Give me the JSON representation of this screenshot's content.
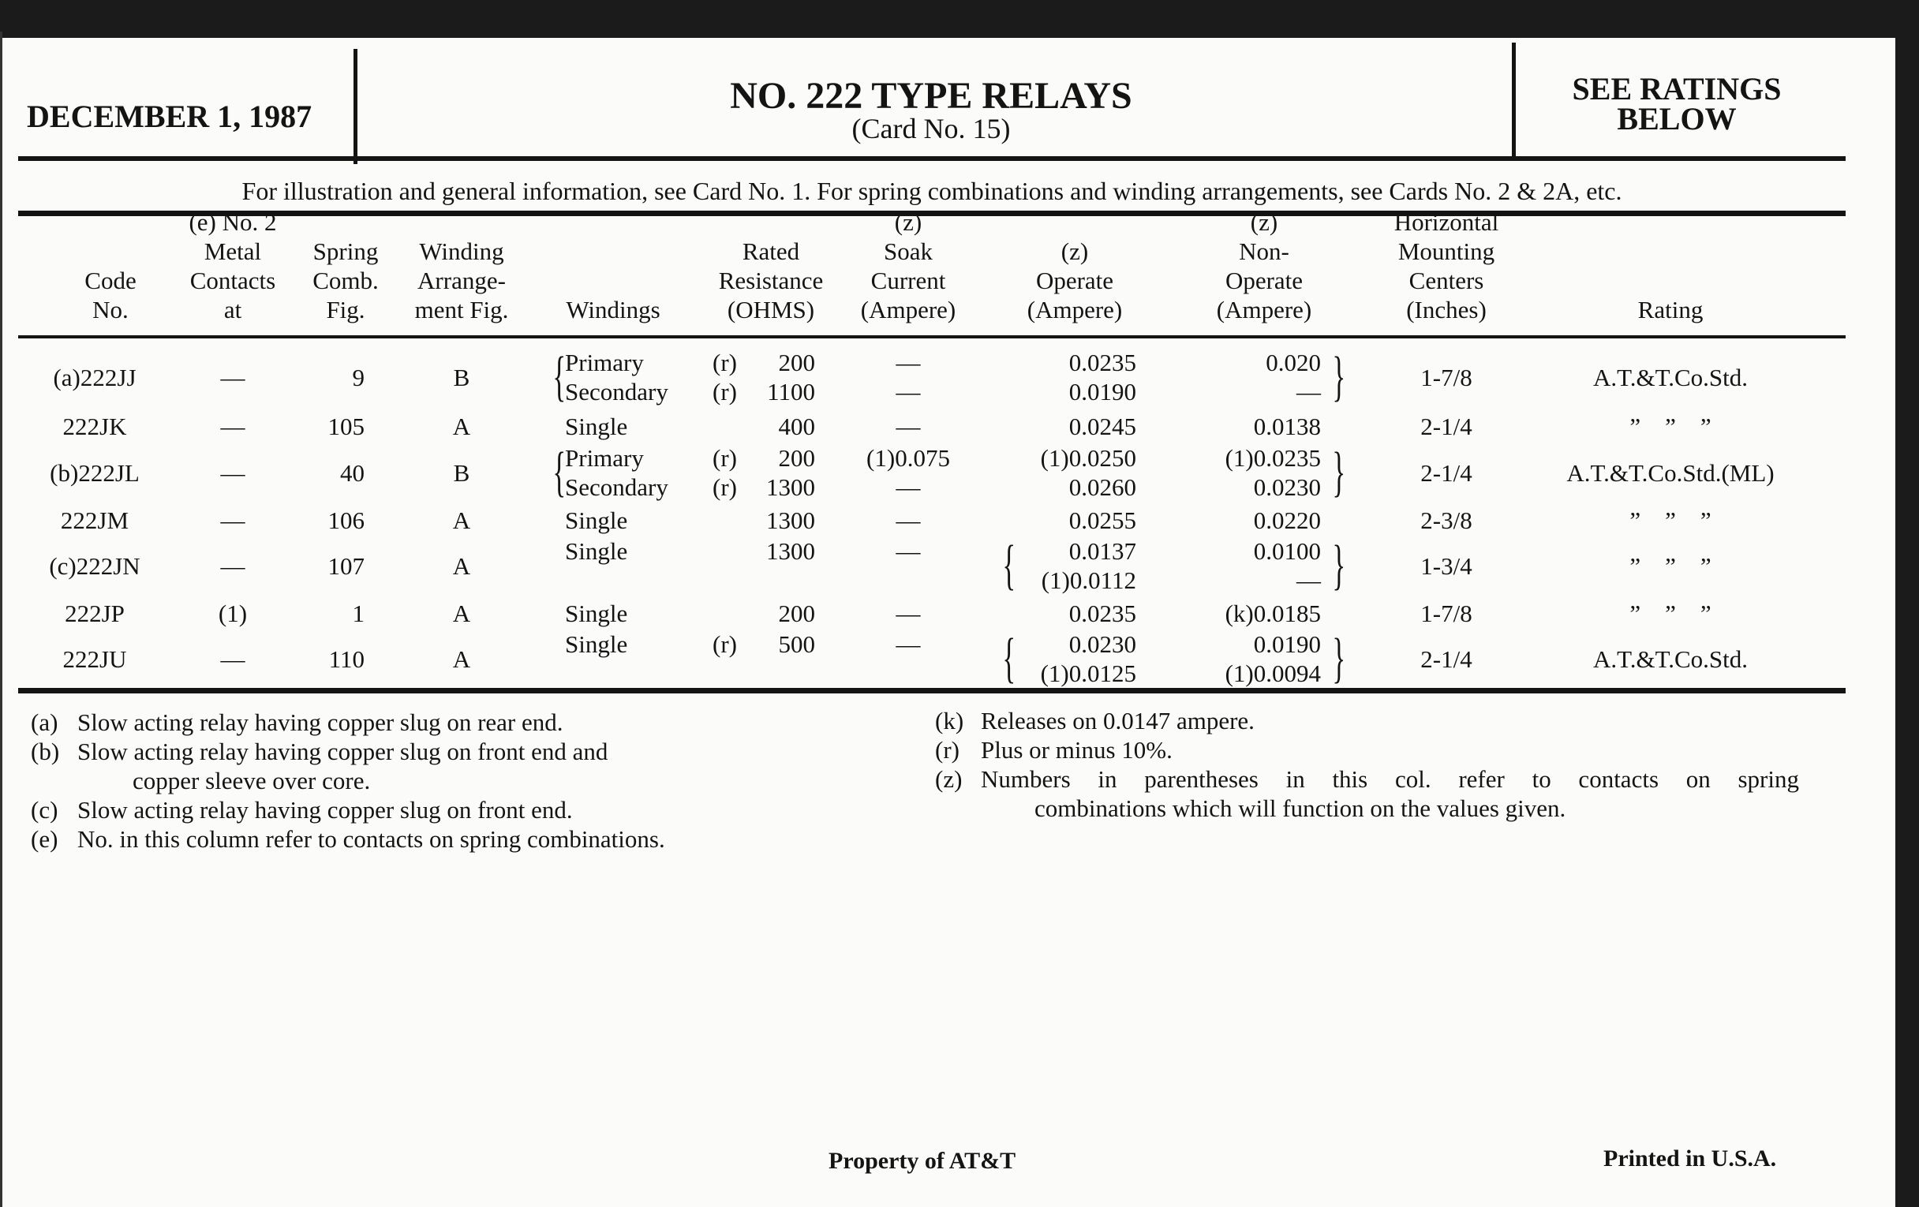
{
  "header": {
    "date": "DECEMBER 1, 1987",
    "title": "NO. 222 TYPE RELAYS",
    "subtitle": "(Card No. 15)",
    "ratings_note": "SEE RATINGS BELOW"
  },
  "info_line": "For illustration and general information, see Card No. 1. For spring combinations and winding arrangements, see Cards No. 2 & 2A, etc.",
  "columns": [
    {
      "key": "code",
      "label": [
        "Code",
        "No."
      ]
    },
    {
      "key": "metal",
      "label": [
        "(e) No. 2",
        "Metal",
        "Contacts",
        "at"
      ]
    },
    {
      "key": "spring",
      "label": [
        "Spring",
        "Comb.",
        "Fig."
      ]
    },
    {
      "key": "winding_arr",
      "label": [
        "Winding",
        "Arrange-",
        "ment Fig."
      ]
    },
    {
      "key": "windings",
      "label": [
        "Windings"
      ]
    },
    {
      "key": "resistance",
      "label": [
        "Rated",
        "Resistance",
        "(OHMS)"
      ]
    },
    {
      "key": "soak",
      "label": [
        "(z)",
        "Soak",
        "Current",
        "(Ampere)"
      ]
    },
    {
      "key": "operate",
      "label": [
        "(z)",
        "Operate",
        "(Ampere)"
      ]
    },
    {
      "key": "nonoperate",
      "label": [
        "(z)",
        "Non-",
        "Operate",
        "(Ampere)"
      ]
    },
    {
      "key": "mounting",
      "label": [
        "Horizontal",
        "Mounting",
        "Centers",
        "(Inches)"
      ]
    },
    {
      "key": "rating",
      "label": [
        "Rating"
      ]
    }
  ],
  "rows": [
    {
      "code": "(a)222JJ",
      "metal": "—",
      "spring": "9",
      "winding_arr": "B",
      "windings": [
        "Primary",
        "Secondary"
      ],
      "res_prefix": [
        "(r)",
        "(r)"
      ],
      "resistance": [
        "200",
        "1100"
      ],
      "soak": [
        "—",
        "—"
      ],
      "operate": [
        "0.0235",
        "0.0190"
      ],
      "nonoperate": [
        "0.020",
        "—"
      ],
      "mounting": "1-7/8",
      "rating": "A.T.&T.Co.Std."
    },
    {
      "code": "222JK",
      "metal": "—",
      "spring": "105",
      "winding_arr": "A",
      "windings": [
        "Single"
      ],
      "res_prefix": [
        ""
      ],
      "resistance": [
        "400"
      ],
      "soak": [
        "—"
      ],
      "operate": [
        "0.0245"
      ],
      "nonoperate": [
        "0.0138"
      ],
      "mounting": "2-1/4",
      "rating": "”    ”    ”"
    },
    {
      "code": "(b)222JL",
      "metal": "—",
      "spring": "40",
      "winding_arr": "B",
      "windings": [
        "Primary",
        "Secondary"
      ],
      "res_prefix": [
        "(r)",
        "(r)"
      ],
      "resistance": [
        "200",
        "1300"
      ],
      "soak": [
        "(1)0.075",
        "—"
      ],
      "operate": [
        "(1)0.0250",
        "0.0260"
      ],
      "nonoperate": [
        "(1)0.0235",
        "0.0230"
      ],
      "mounting": "2-1/4",
      "rating": "A.T.&T.Co.Std.(ML)"
    },
    {
      "code": "222JM",
      "metal": "—",
      "spring": "106",
      "winding_arr": "A",
      "windings": [
        "Single"
      ],
      "res_prefix": [
        ""
      ],
      "resistance": [
        "1300"
      ],
      "soak": [
        "—"
      ],
      "operate": [
        "0.0255"
      ],
      "nonoperate": [
        "0.0220"
      ],
      "mounting": "2-3/8",
      "rating": "”    ”    ”"
    },
    {
      "code": "(c)222JN",
      "metal": "—",
      "spring": "107",
      "winding_arr": "A",
      "windings": [
        "Single"
      ],
      "res_prefix": [
        ""
      ],
      "resistance": [
        "1300"
      ],
      "soak": [
        "—"
      ],
      "operate": [
        "0.0137",
        "(1)0.0112"
      ],
      "nonoperate": [
        "0.0100",
        "—"
      ],
      "mounting": "1-3/4",
      "rating": "”    ”    ”"
    },
    {
      "code": "222JP",
      "metal": "(1)",
      "spring": "1",
      "winding_arr": "A",
      "windings": [
        "Single"
      ],
      "res_prefix": [
        ""
      ],
      "resistance": [
        "200"
      ],
      "soak": [
        "—"
      ],
      "operate": [
        "0.0235"
      ],
      "nonoperate": [
        "(k)0.0185"
      ],
      "mounting": "1-7/8",
      "rating": "”    ”    ”"
    },
    {
      "code": "222JU",
      "metal": "—",
      "spring": "110",
      "winding_arr": "A",
      "windings": [
        "Single"
      ],
      "res_prefix": [
        "(r)"
      ],
      "resistance": [
        "500"
      ],
      "soak": [
        "—"
      ],
      "operate": [
        "0.0230",
        "(1)0.0125"
      ],
      "nonoperate": [
        "0.0190",
        "(1)0.0094"
      ],
      "mounting": "2-1/4",
      "rating": "A.T.&T.Co.Std."
    }
  ],
  "footnotes_left": [
    {
      "mark": "(a)",
      "text": "Slow acting relay having copper slug on rear end."
    },
    {
      "mark": "(b)",
      "text": "Slow acting relay having copper slug on front end and",
      "cont": "copper sleeve over core."
    },
    {
      "mark": "(c)",
      "text": "Slow acting relay having copper slug on front end."
    },
    {
      "mark": "(e)",
      "text": "No. in this column refer to contacts on spring combinations."
    }
  ],
  "footnotes_right": [
    {
      "mark": "(k)",
      "text": "Releases on 0.0147 ampere."
    },
    {
      "mark": "(r)",
      "text": "Plus or minus 10%."
    },
    {
      "mark": "(z)",
      "text": "Numbers in parentheses in this col. refer to contacts on spring",
      "cont": "combinations which will function on the values given."
    }
  ],
  "footer": {
    "property": "Property of AT&T",
    "printed": "Printed in U.S.A."
  }
}
